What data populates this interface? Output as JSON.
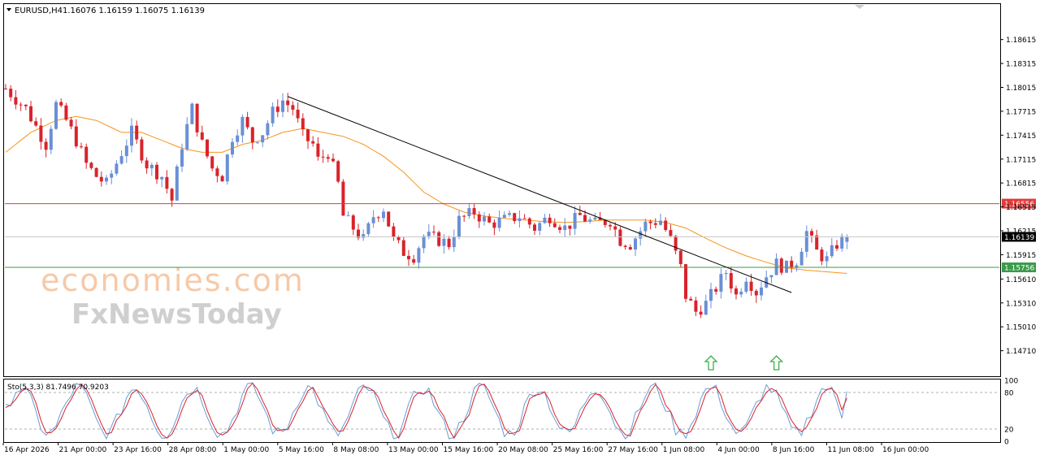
{
  "header": {
    "symbol_label": "EURUSD,H4",
    "ohlc_values": "1.16076 1.16159 1.16075 1.16139"
  },
  "watermark": {
    "line1": "economies.com",
    "line2": "FxNewsToday"
  },
  "colors": {
    "bull_candle": "#6a8fd6",
    "bear_candle": "#d9232b",
    "moving_average": "#f7941d",
    "resistance_line": "#e03b3b",
    "support_line": "#3a9b4a",
    "trendline": "#000000",
    "arrows": "#3fae49",
    "stoch_main": "#6a9cd6",
    "stoch_signal": "#d9232b"
  },
  "chart_data": {
    "type": "candlestick",
    "symbol": "EURUSD",
    "timeframe": "H4",
    "ohlc_current": {
      "open": 1.16076,
      "high": 1.16159,
      "low": 1.16075,
      "close": 1.16139
    },
    "y_axis": {
      "range": [
        1.144,
        1.1905
      ],
      "ticks": [
        "1.18615",
        "1.18315",
        "1.18015",
        "1.17715",
        "1.17415",
        "1.17115",
        "1.16815",
        "1.16515",
        "1.16215",
        "1.15915",
        "1.15610",
        "1.15310",
        "1.15010",
        "1.14710"
      ]
    },
    "x_axis": {
      "labels": [
        "16 Apr 2026",
        "21 Apr 00:00",
        "23 Apr 16:00",
        "28 Apr 08:00",
        "1 May 00:00",
        "5 May 16:00",
        "8 May 08:00",
        "13 May 00:00",
        "15 May 16:00",
        "20 May 08:00",
        "25 May 16:00",
        "27 May 16:00",
        "1 Jun 08:00",
        "4 Jun 00:00",
        "8 Jun 16:00",
        "11 Jun 08:00",
        "16 Jun 00:00"
      ]
    },
    "levels": [
      {
        "kind": "resistance",
        "value": 1.16556,
        "label": "1.16556"
      },
      {
        "kind": "current",
        "value": 1.16139,
        "label": "1.16139"
      },
      {
        "kind": "support",
        "value": 1.15756,
        "label": "1.15756"
      }
    ],
    "trendline": {
      "from": {
        "bar": 56,
        "price": 1.179
      },
      "to": {
        "bar": 156,
        "price": 1.1544
      }
    },
    "close_path": [
      [
        0,
        1.18
      ],
      [
        4,
        1.1775
      ],
      [
        8,
        1.173
      ],
      [
        10,
        1.178
      ],
      [
        12,
        1.176
      ],
      [
        14,
        1.1735
      ],
      [
        16,
        1.1705
      ],
      [
        18,
        1.169
      ],
      [
        20,
        1.168
      ],
      [
        23,
        1.172
      ],
      [
        25,
        1.1745
      ],
      [
        28,
        1.1705
      ],
      [
        31,
        1.169
      ],
      [
        33,
        1.166
      ],
      [
        35,
        1.173
      ],
      [
        37,
        1.1775
      ],
      [
        39,
        1.173
      ],
      [
        41,
        1.17
      ],
      [
        43,
        1.169
      ],
      [
        45,
        1.174
      ],
      [
        47,
        1.176
      ],
      [
        49,
        1.1735
      ],
      [
        51,
        1.1745
      ],
      [
        53,
        1.177
      ],
      [
        55,
        1.1785
      ],
      [
        57,
        1.1775
      ],
      [
        59,
        1.174
      ],
      [
        61,
        1.173
      ],
      [
        62,
        1.171
      ],
      [
        64,
        1.172
      ],
      [
        66,
        1.168
      ],
      [
        67,
        1.164
      ],
      [
        69,
        1.1625
      ],
      [
        71,
        1.161
      ],
      [
        73,
        1.164
      ],
      [
        75,
        1.165
      ],
      [
        77,
        1.161
      ],
      [
        79,
        1.1595
      ],
      [
        81,
        1.159
      ],
      [
        83,
        1.1615
      ],
      [
        86,
        1.161
      ],
      [
        88,
        1.1605
      ],
      [
        90,
        1.1635
      ],
      [
        93,
        1.1645
      ],
      [
        96,
        1.163
      ],
      [
        99,
        1.1635
      ],
      [
        102,
        1.164
      ],
      [
        105,
        1.1625
      ],
      [
        108,
        1.164
      ],
      [
        111,
        1.1625
      ],
      [
        114,
        1.164
      ],
      [
        117,
        1.163
      ],
      [
        120,
        1.1635
      ],
      [
        122,
        1.161
      ],
      [
        124,
        1.1605
      ],
      [
        127,
        1.163
      ],
      [
        130,
        1.1635
      ],
      [
        132,
        1.161
      ],
      [
        134,
        1.1575
      ],
      [
        135,
        1.154
      ],
      [
        137,
        1.152
      ],
      [
        139,
        1.153
      ],
      [
        141,
        1.155
      ],
      [
        143,
        1.157
      ],
      [
        145,
        1.154
      ],
      [
        147,
        1.1565
      ],
      [
        149,
        1.1545
      ],
      [
        151,
        1.1565
      ],
      [
        153,
        1.158
      ],
      [
        155,
        1.1575
      ],
      [
        157,
        1.1585
      ],
      [
        159,
        1.162
      ],
      [
        161,
        1.1595
      ],
      [
        163,
        1.1585
      ],
      [
        165,
        1.1605
      ],
      [
        167,
        1.1614
      ]
    ],
    "moving_average_path": [
      [
        0,
        1.172
      ],
      [
        5,
        1.1745
      ],
      [
        10,
        1.176
      ],
      [
        14,
        1.1765
      ],
      [
        18,
        1.176
      ],
      [
        23,
        1.1745
      ],
      [
        27,
        1.1745
      ],
      [
        31,
        1.1735
      ],
      [
        35,
        1.1725
      ],
      [
        39,
        1.172
      ],
      [
        43,
        1.172
      ],
      [
        47,
        1.173
      ],
      [
        51,
        1.1735
      ],
      [
        55,
        1.1745
      ],
      [
        59,
        1.175
      ],
      [
        63,
        1.1745
      ],
      [
        67,
        1.174
      ],
      [
        71,
        1.173
      ],
      [
        75,
        1.1715
      ],
      [
        79,
        1.1695
      ],
      [
        83,
        1.167
      ],
      [
        87,
        1.1655
      ],
      [
        91,
        1.1645
      ],
      [
        95,
        1.164
      ],
      [
        99,
        1.1637
      ],
      [
        103,
        1.1635
      ],
      [
        107,
        1.1633
      ],
      [
        111,
        1.1632
      ],
      [
        115,
        1.1633
      ],
      [
        119,
        1.1635
      ],
      [
        123,
        1.1635
      ],
      [
        127,
        1.1635
      ],
      [
        131,
        1.1632
      ],
      [
        135,
        1.1625
      ],
      [
        139,
        1.1612
      ],
      [
        143,
        1.16
      ],
      [
        147,
        1.159
      ],
      [
        151,
        1.1582
      ],
      [
        155,
        1.1575
      ],
      [
        159,
        1.1572
      ],
      [
        163,
        1.157
      ],
      [
        167,
        1.1568
      ]
    ],
    "bar_count": 168,
    "arrows": [
      {
        "direction": "up",
        "bar": 140
      },
      {
        "direction": "up",
        "bar": 153
      }
    ],
    "stochastic": {
      "label": "Sto(5,3,3) 81.7496 70.9203",
      "main": 81.7496,
      "signal": 70.9203,
      "range": [
        0,
        100
      ],
      "ticks": [
        "100",
        "80",
        "20",
        "0"
      ],
      "levels": [
        80,
        20
      ]
    }
  }
}
